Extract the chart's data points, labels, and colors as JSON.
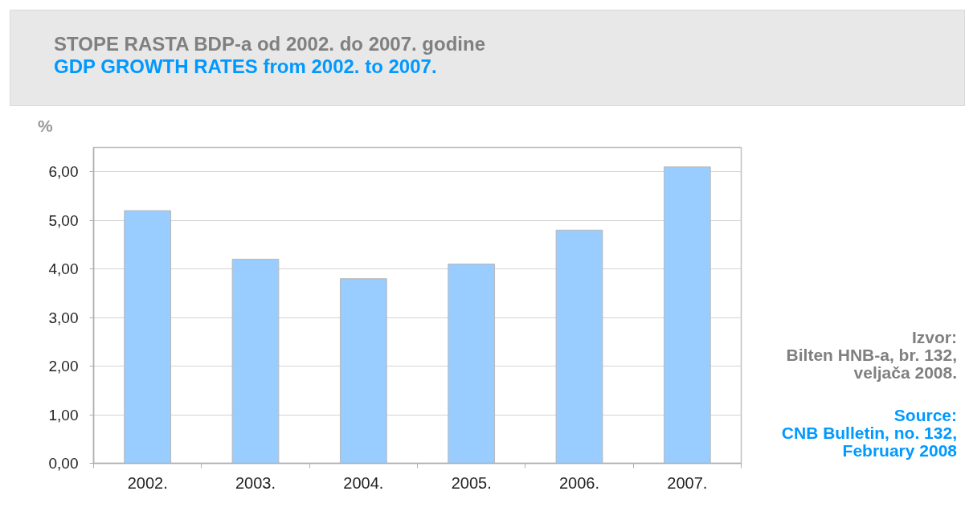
{
  "chart_data": {
    "type": "bar",
    "title": "STOPE RASTA BDP-a od 2002. do 2007. godine",
    "subtitle": "GDP GROWTH RATES from 2002. to 2007.",
    "ylabel": "%",
    "categories": [
      "2002.",
      "2003.",
      "2004.",
      "2005.",
      "2006.",
      "2007."
    ],
    "values": [
      5.2,
      4.2,
      3.8,
      4.1,
      4.8,
      6.1
    ],
    "color": "#99ccff",
    "ylim": [
      0,
      6.5
    ],
    "yticks": [
      {
        "value": 0,
        "label": "0,00"
      },
      {
        "value": 1,
        "label": "1,00"
      },
      {
        "value": 2,
        "label": "2,00"
      },
      {
        "value": 3,
        "label": "3,00"
      },
      {
        "value": 4,
        "label": "4,00"
      },
      {
        "value": 5,
        "label": "5,00"
      },
      {
        "value": 6,
        "label": "6,00"
      }
    ],
    "grid": "y",
    "annotations": [
      "Izvor:\nBilten HNB-a, br. 132,\nveljača 2008.",
      "Source:\nCNB Bulletin, no. 132,\nFebruary 2008"
    ]
  }
}
